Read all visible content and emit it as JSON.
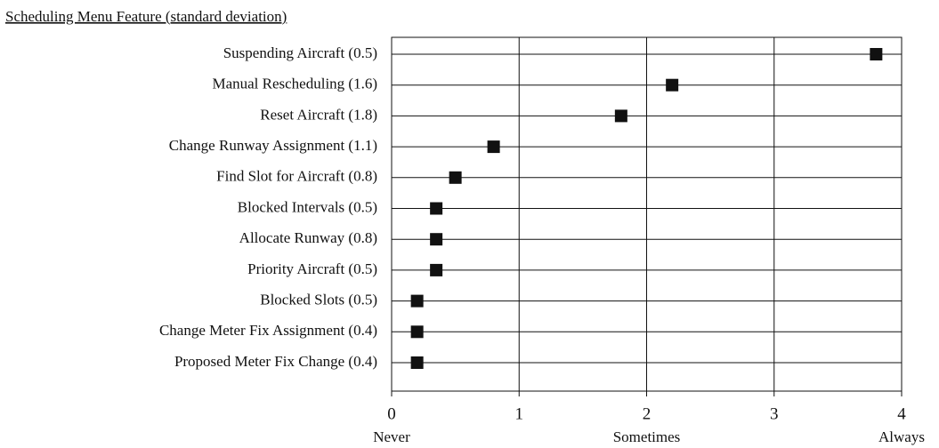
{
  "chart_data": {
    "type": "dot",
    "title": "Scheduling Menu Feature (standard deviation)",
    "categories": [
      "Suspending Aircraft (0.5)",
      "Manual Rescheduling (1.6)",
      "Reset Aircraft (1.8)",
      "Change Runway Assignment (1.1)",
      "Find Slot for Aircraft (0.8)",
      "Blocked Intervals (0.5)",
      "Allocate Runway (0.8)",
      "Priority Aircraft (0.5)",
      "Blocked Slots (0.5)",
      "Change Meter Fix Assignment (0.4)",
      "Proposed Meter Fix Change (0.4)"
    ],
    "values": [
      3.8,
      2.2,
      1.8,
      0.8,
      0.5,
      0.35,
      0.35,
      0.35,
      0.2,
      0.2,
      0.2
    ],
    "color": "#111111",
    "xlim": [
      0,
      4
    ],
    "xticks": [
      0,
      1,
      2,
      3,
      4
    ],
    "x_anchor_labels": [
      {
        "value": 0,
        "label": "Never"
      },
      {
        "value": 2,
        "label": "Sometimes"
      },
      {
        "value": 4,
        "label": "Always"
      }
    ],
    "grid": true
  }
}
